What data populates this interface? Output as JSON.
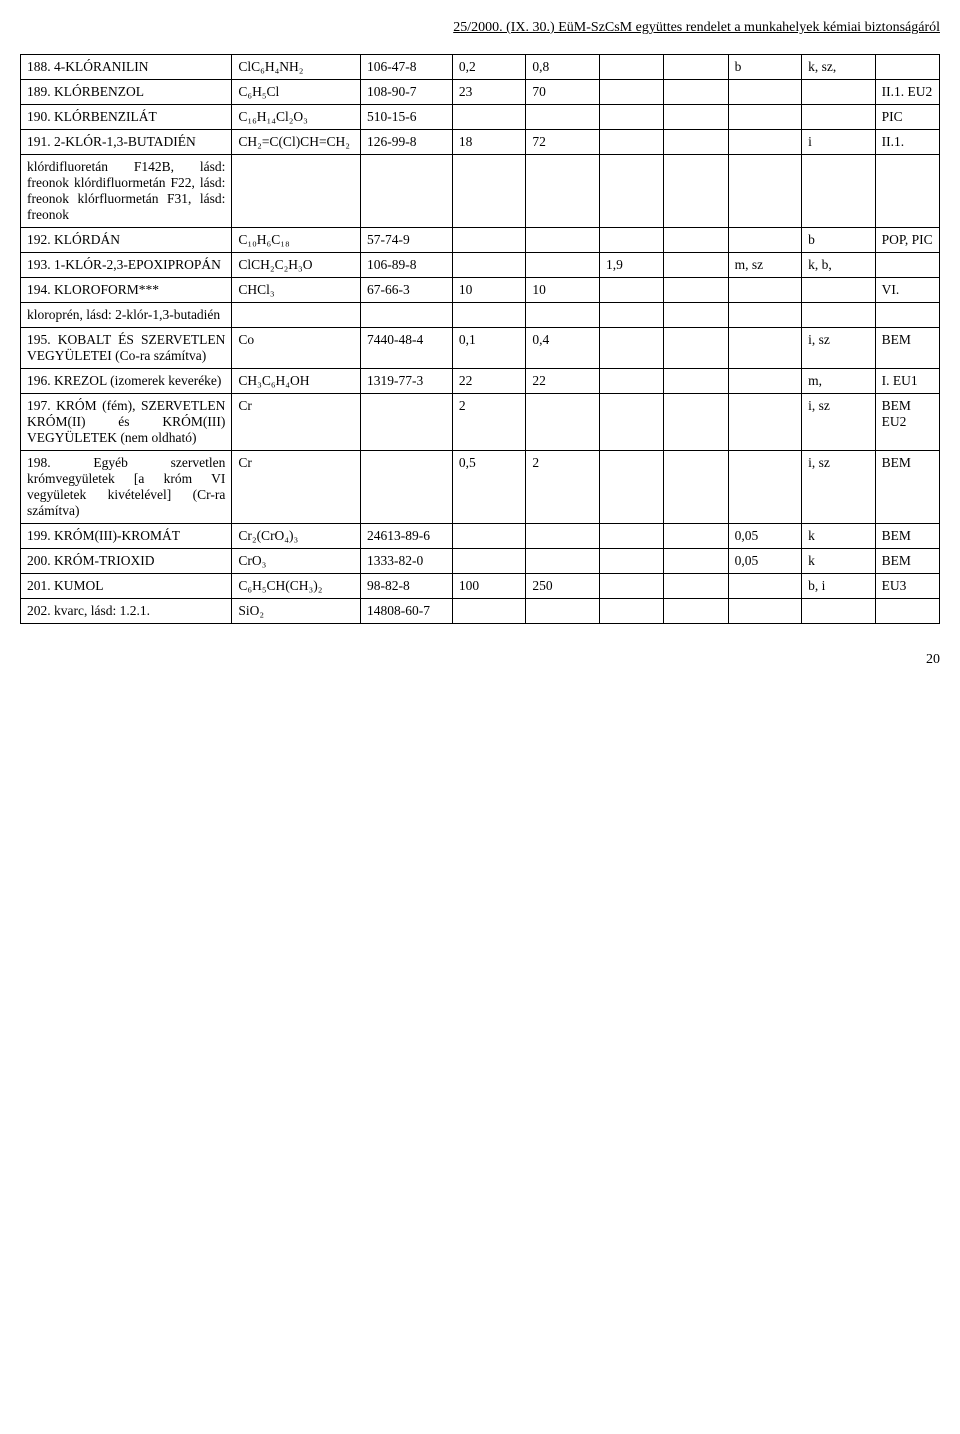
{
  "header": "25/2000. (IX. 30.) EüM-SzCsM együttes rendelet a munkahelyek kémiai biztonságáról",
  "rows": [
    {
      "c1": "188.    4-KLÓRANILIN",
      "c2": "ClC₆H₄NH₂",
      "c3": "106-47-8",
      "c4": "0,2",
      "c5": "0,8",
      "c6": "",
      "c7": "",
      "c8": "b",
      "c9": "k, sz,",
      "c10": ""
    },
    {
      "c1": "189.    KLÓRBENZOL",
      "c2": "C₆H₅Cl",
      "c3": "108-90-7",
      "c4": "23",
      "c5": "70",
      "c6": "",
      "c7": "",
      "c8": "",
      "c9": "",
      "c10": "II.1. EU2"
    },
    {
      "c1": "190.    KLÓRBENZILÁT",
      "c2": "C₁₆H₁₄Cl₂O₃",
      "c3": "510-15-6",
      "c4": "",
      "c5": "",
      "c6": "",
      "c7": "",
      "c8": "",
      "c9": "",
      "c10": "PIC"
    },
    {
      "c1": "191.      2-KLÓR-1,3-BUTADIÉN",
      "c2": "CH₂=C(Cl)CH=CH₂",
      "c3": "126-99-8",
      "c4": "18",
      "c5": "72",
      "c6": "",
      "c7": "",
      "c8": "",
      "c9": "i",
      "c10": "II.1."
    },
    {
      "c1": "        klórdifluoretán F142B, lásd: freonok klórdifluormetán F22, lásd: freonok klórfluormetán F31, lásd: freonok",
      "c2": "",
      "c3": "",
      "c4": "",
      "c5": "",
      "c6": "",
      "c7": "",
      "c8": "",
      "c9": "",
      "c10": ""
    },
    {
      "c1": "192.    KLÓRDÁN",
      "c2": "C₁₀H₆C₁₈",
      "c3": "57-74-9",
      "c4": "",
      "c5": "",
      "c6": "",
      "c7": "",
      "c8": "",
      "c9": "b",
      "c10": "POP, PIC"
    },
    {
      "c1": "193.       1-KLÓR-2,3-EPOXIPROPÁN",
      "c2": "ClCH₂C₂H₃O",
      "c3": "106-89-8",
      "c4": "",
      "c5": "",
      "c6": "1,9",
      "c7": "",
      "c8": "m, sz",
      "c9": "k, b,",
      "c10": ""
    },
    {
      "c1": "194.    KLOROFORM***",
      "c2": "CHCl₃",
      "c3": "67-66-3",
      "c4": "10",
      "c5": "10",
      "c6": "",
      "c7": "",
      "c8": "",
      "c9": "",
      "c10": "VI."
    },
    {
      "c1": "        kloroprén, lásd: 2-klór-1,3-butadién",
      "c2": "",
      "c3": "",
      "c4": "",
      "c5": "",
      "c6": "",
      "c7": "",
      "c8": "",
      "c9": "",
      "c10": ""
    },
    {
      "c1": "195.    KOBALT ÉS SZERVETLEN VEGYÜLETEI (Co-ra számítva)",
      "c2": "Co",
      "c3": "7440-48-4",
      "c4": "0,1",
      "c5": "0,4",
      "c6": "",
      "c7": "",
      "c8": "",
      "c9": "i, sz",
      "c10": "BEM"
    },
    {
      "c1": "196.           KREZOL (izomerek keveréke)",
      "c2": "CH₃C₆H₄OH",
      "c3": "1319-77-3",
      "c4": "22",
      "c5": "22",
      "c6": "",
      "c7": "",
      "c8": "",
      "c9": "m,",
      "c10": "I. EU1"
    },
    {
      "c1": "197.    KRÓM (fém), SZERVETLEN KRÓM(II) és KRÓM(III) VEGYÜLETEK (nem oldható)",
      "c2": "Cr",
      "c3": "",
      "c4": "2",
      "c5": "",
      "c6": "",
      "c7": "",
      "c8": "",
      "c9": "i, sz",
      "c10": "BEM EU2"
    },
    {
      "c1": "198.    Egyéb szervetlen krómvegyületek [a króm VI vegyületek kivételével] (Cr-ra számítva)",
      "c2": "Cr",
      "c3": "",
      "c4": "0,5",
      "c5": "2",
      "c6": "",
      "c7": "",
      "c8": "",
      "c9": "i, sz",
      "c10": "BEM"
    },
    {
      "c1": "199.         KRÓM(III)-KROMÁT",
      "c2": "Cr₂(CrO₄)₃",
      "c3": "24613-89-6",
      "c4": "",
      "c5": "",
      "c6": "",
      "c7": "",
      "c8": "0,05",
      "c9": "k",
      "c10": "BEM"
    },
    {
      "c1": "200.    KRÓM-TRIOXID",
      "c2": "CrO₃",
      "c3": "1333-82-0",
      "c4": "",
      "c5": "",
      "c6": "",
      "c7": "",
      "c8": "0,05",
      "c9": "k",
      "c10": "BEM"
    },
    {
      "c1": "201.    KUMOL",
      "c2": "C₆H₅CH(CH₃)₂",
      "c3": "98-82-8",
      "c4": "100",
      "c5": "250",
      "c6": "",
      "c7": "",
      "c8": "",
      "c9": "b, i",
      "c10": "EU3"
    },
    {
      "c1": "202.    kvarc, lásd: 1.2.1.",
      "c2": "SiO₂",
      "c3": "14808-60-7",
      "c4": "",
      "c5": "",
      "c6": "",
      "c7": "",
      "c8": "",
      "c9": "",
      "c10": ""
    }
  ],
  "page_number": "20"
}
